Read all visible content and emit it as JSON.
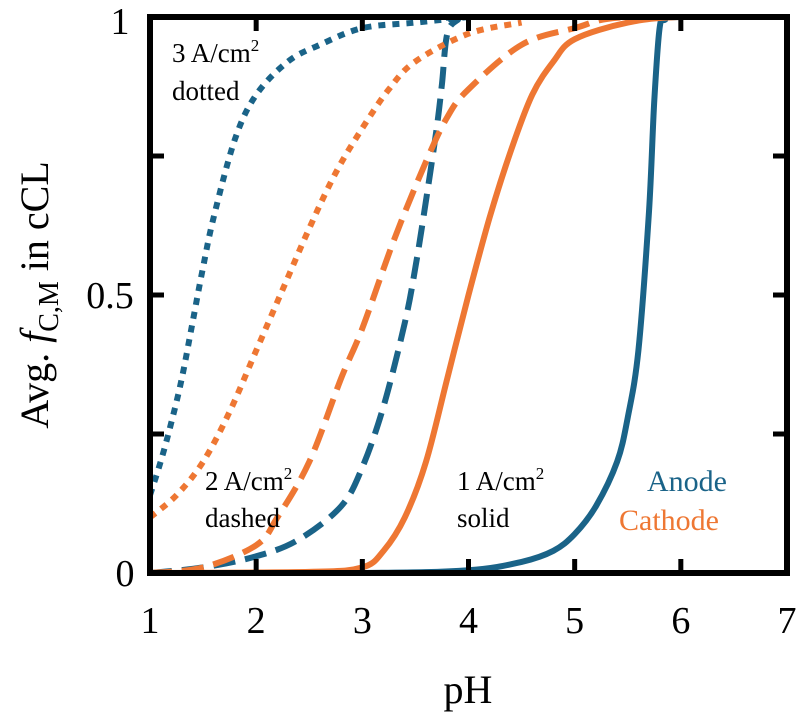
{
  "chart_data": {
    "type": "line",
    "title": "",
    "xlabel": "pH",
    "ylabel": "Avg. f_C,M in cCL",
    "ylabel_parts": {
      "prefix": "Avg. ",
      "symbol": "f",
      "subscript": "C,M",
      "suffix": " in cCL"
    },
    "xlim": [
      1,
      7
    ],
    "ylim": [
      0,
      1
    ],
    "x_ticks": [
      1,
      2,
      3,
      4,
      5,
      6,
      7
    ],
    "x_tick_labels": [
      "1",
      "2",
      "3",
      "4",
      "5",
      "6",
      "7"
    ],
    "y_ticks": [
      0,
      0.25,
      0.5,
      0.75,
      1
    ],
    "y_tick_labels": {
      "0": "0",
      "0.5": "0.5",
      "1": "1"
    },
    "grid": false,
    "legend": {
      "position": "lower right, inside",
      "entries": [
        {
          "label": "Anode",
          "color": "#1a6388"
        },
        {
          "label": "Cathode",
          "color": "#ee7733"
        }
      ]
    },
    "annotations": [
      {
        "id": "a3",
        "line1": "3 A/cm",
        "sup": "2",
        "line2": "dotted"
      },
      {
        "id": "a2",
        "line1": "2 A/cm",
        "sup": "2",
        "line2": "dashed"
      },
      {
        "id": "a1",
        "line1": "1 A/cm",
        "sup": "2",
        "line2": "solid"
      }
    ],
    "series": [
      {
        "name": "Anode 1 A/cm2",
        "electrode": "Anode",
        "current_density": 1,
        "style": "solid",
        "color": "#1a6388",
        "x": [
          1.0,
          3.0,
          4.0,
          4.5,
          4.8,
          5.0,
          5.2,
          5.4,
          5.5,
          5.6,
          5.7,
          5.75,
          5.8,
          5.85,
          6.0,
          7.0
        ],
        "y": [
          0.0,
          0.0,
          0.005,
          0.02,
          0.04,
          0.07,
          0.12,
          0.2,
          0.28,
          0.4,
          0.65,
          0.85,
          0.98,
          0.995,
          1.0,
          1.0
        ]
      },
      {
        "name": "Cathode 1 A/cm2",
        "electrode": "Cathode",
        "current_density": 1,
        "style": "solid",
        "color": "#ee7733",
        "x": [
          1.0,
          2.5,
          3.0,
          3.2,
          3.4,
          3.6,
          3.8,
          4.0,
          4.2,
          4.4,
          4.6,
          4.8,
          5.0,
          5.5,
          6.0,
          7.0
        ],
        "y": [
          0.0,
          0.002,
          0.01,
          0.04,
          0.1,
          0.2,
          0.35,
          0.5,
          0.64,
          0.76,
          0.86,
          0.92,
          0.96,
          0.99,
          1.0,
          1.0
        ]
      },
      {
        "name": "Anode 2 A/cm2",
        "electrode": "Anode",
        "current_density": 2,
        "style": "dashed",
        "color": "#1a6388",
        "x": [
          1.0,
          1.5,
          2.0,
          2.4,
          2.8,
          3.0,
          3.2,
          3.4,
          3.5,
          3.6,
          3.7,
          3.75,
          3.8,
          3.9,
          4.0,
          7.0
        ],
        "y": [
          0.0,
          0.01,
          0.03,
          0.06,
          0.12,
          0.19,
          0.3,
          0.45,
          0.55,
          0.67,
          0.8,
          0.88,
          0.97,
          0.995,
          1.0,
          1.0
        ]
      },
      {
        "name": "Cathode 2 A/cm2",
        "electrode": "Cathode",
        "current_density": 2,
        "style": "dashed",
        "color": "#ee7733",
        "x": [
          1.0,
          1.5,
          2.0,
          2.2,
          2.5,
          2.8,
          3.0,
          3.3,
          3.6,
          3.8,
          4.0,
          4.5,
          5.0,
          5.5,
          7.0
        ],
        "y": [
          0.0,
          0.01,
          0.05,
          0.1,
          0.2,
          0.35,
          0.44,
          0.6,
          0.74,
          0.82,
          0.87,
          0.95,
          0.98,
          1.0,
          1.0
        ]
      },
      {
        "name": "Anode 3 A/cm2",
        "electrode": "Anode",
        "current_density": 3,
        "style": "dotted",
        "color": "#1a6388",
        "x": [
          1.0,
          1.1,
          1.2,
          1.3,
          1.4,
          1.5,
          1.6,
          1.8,
          2.0,
          2.3,
          2.6,
          3.0,
          3.5,
          4.0
        ],
        "y": [
          0.14,
          0.2,
          0.27,
          0.35,
          0.45,
          0.55,
          0.64,
          0.78,
          0.86,
          0.92,
          0.95,
          0.98,
          0.99,
          1.0
        ]
      },
      {
        "name": "Cathode 3 A/cm2",
        "electrode": "Cathode",
        "current_density": 3,
        "style": "dotted",
        "color": "#ee7733",
        "x": [
          1.0,
          1.25,
          1.5,
          1.75,
          2.0,
          2.25,
          2.5,
          2.75,
          3.0,
          3.25,
          3.5,
          4.0,
          4.5
        ],
        "y": [
          0.1,
          0.14,
          0.2,
          0.29,
          0.4,
          0.51,
          0.62,
          0.72,
          0.8,
          0.87,
          0.92,
          0.97,
          0.99
        ]
      }
    ]
  }
}
